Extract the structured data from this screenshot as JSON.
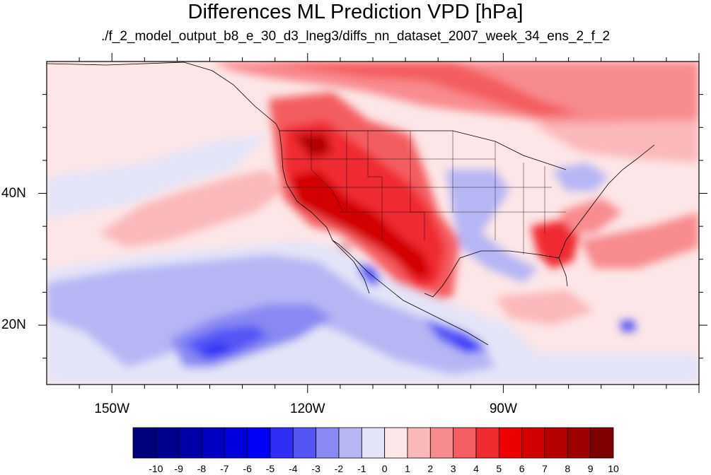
{
  "title": "Differences ML Prediction VPD [hPa]",
  "subtitle": "./f_2_model_output_b8_e_30_d3_lneg3/diffs_nn_dataset_2007_week_34_ens_2_f_2",
  "map": {
    "projection": "cylindrical equidistant",
    "lon_range": [
      -160,
      -60
    ],
    "lat_range": [
      11,
      60
    ],
    "lon_ticks": [
      {
        "value": -150,
        "label": "150W"
      },
      {
        "value": -120,
        "label": "120W"
      },
      {
        "value": -90,
        "label": "90W"
      }
    ],
    "lat_ticks": [
      {
        "value": 40,
        "label": "40N"
      },
      {
        "value": 20,
        "label": "20N"
      }
    ],
    "background_color": "#fde6e7"
  },
  "colorbar": {
    "levels": [
      "-10",
      "-9",
      "-8",
      "-7",
      "-6",
      "-5",
      "-4",
      "-3",
      "-2",
      "-1",
      "0",
      "1",
      "2",
      "3",
      "4",
      "5",
      "6",
      "7",
      "8",
      "9",
      "10"
    ],
    "colors": [
      "#00007a",
      "#00008f",
      "#0000a6",
      "#0000c0",
      "#0000dc",
      "#0000f6",
      "#2e2ef7",
      "#5555f6",
      "#8989f3",
      "#b6b6f5",
      "#e4e4f8",
      "#fde6e7",
      "#fbb8ba",
      "#f88b8e",
      "#f45d61",
      "#f02b30",
      "#ee0000",
      "#d20000",
      "#b50000",
      "#9c0000",
      "#7f0000"
    ]
  }
}
